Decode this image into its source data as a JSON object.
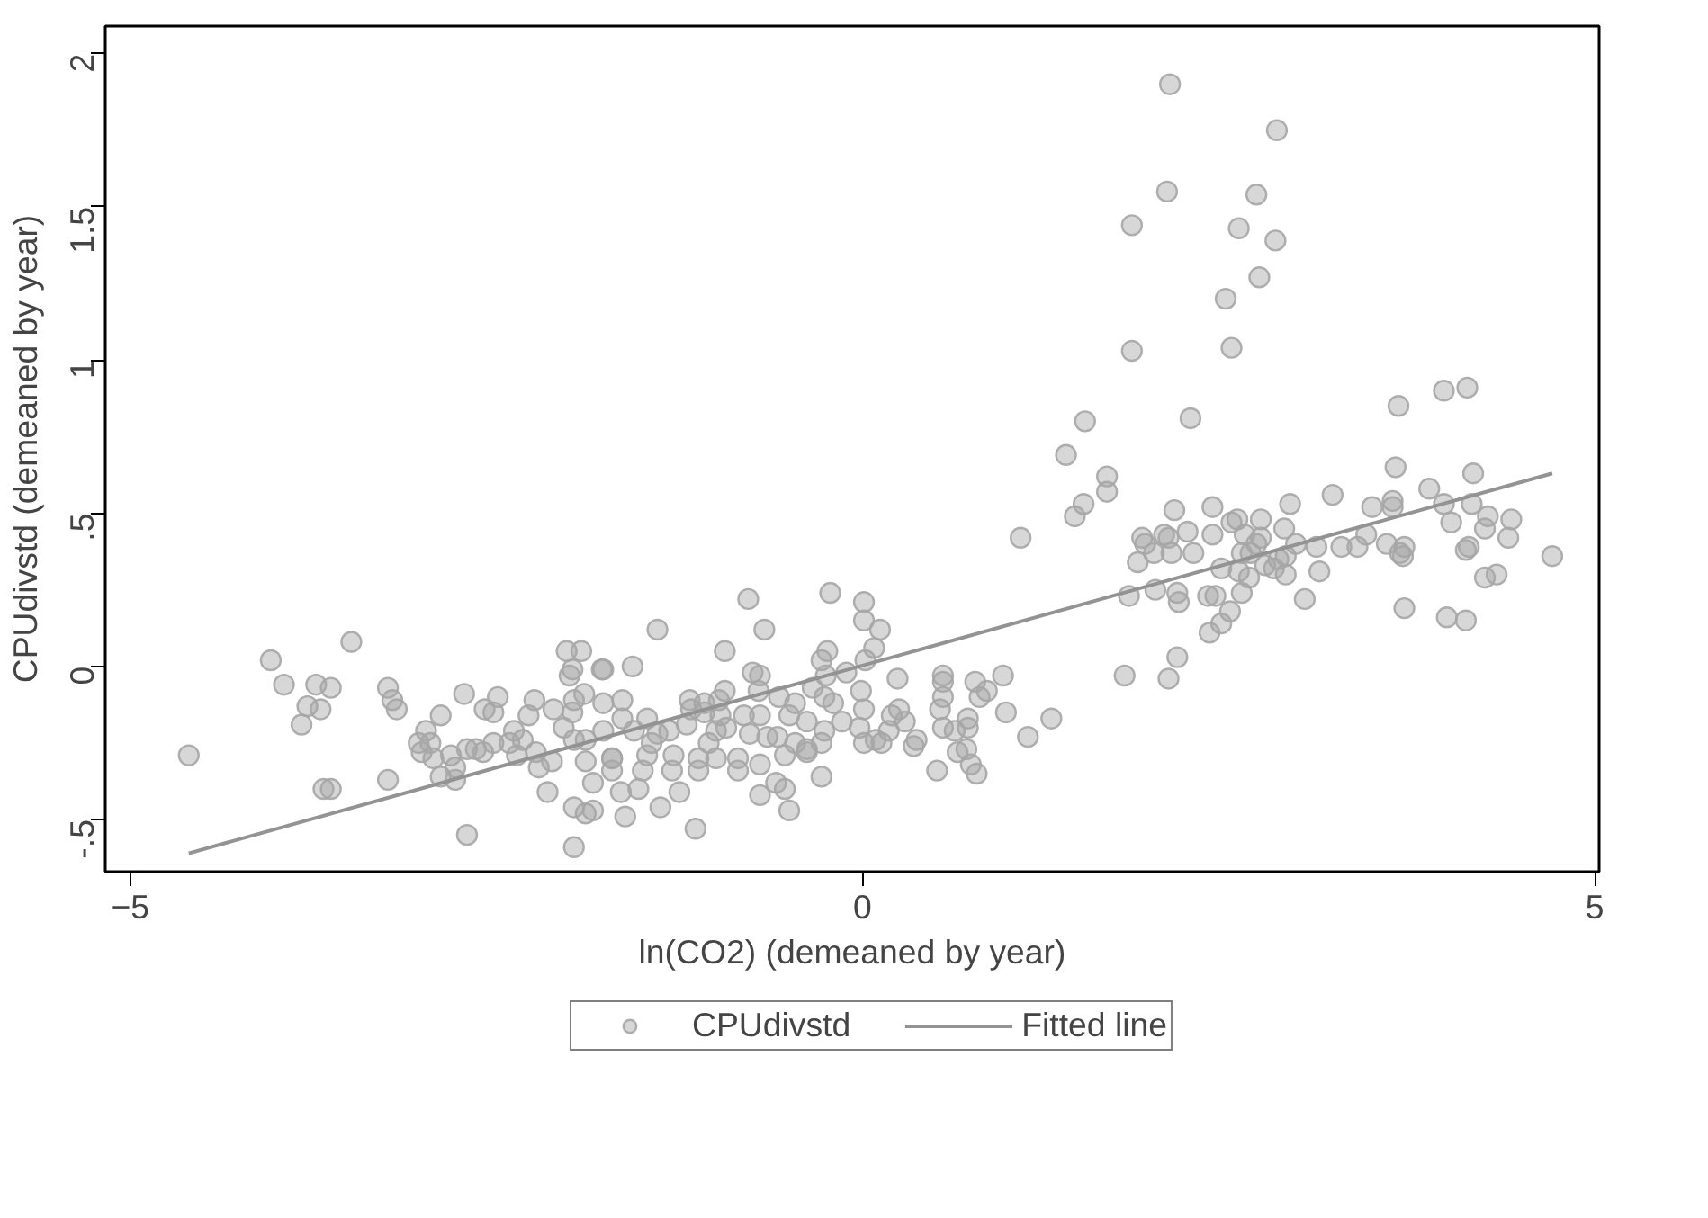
{
  "chart_data": {
    "type": "scatter",
    "xlabel": "ln(CO2) (demeaned by year)",
    "ylabel": "CPUdivstd (demeaned by year)",
    "xlim": [
      -5.17,
      5.03
    ],
    "ylim": [
      -0.67,
      2.09
    ],
    "xticks": [
      -5,
      0,
      5
    ],
    "yticks": [
      {
        "value": -0.5,
        "label": "-.5"
      },
      0,
      {
        "value": 0.5,
        "label": ".5"
      },
      1,
      1.5,
      2
    ],
    "grid": false,
    "legend": "bottom",
    "series": [
      {
        "name": "CPUdivstd",
        "marker": "circle",
        "color": "#a6a6a6",
        "x": [
          -4.6,
          -4.04,
          -3.95,
          -3.49,
          -3.73,
          -3.63,
          -3.79,
          -3.7,
          -3.83,
          -3.68,
          -3.63,
          -3.24,
          -3.21,
          -3.18,
          -3.24,
          -2.88,
          -2.72,
          -2.98,
          -3.03,
          -2.95,
          -3.01,
          -2.93,
          -2.81,
          -2.7,
          -2.64,
          -2.59,
          -2.88,
          -2.78,
          -2.78,
          -2.7,
          -2.58,
          -2.52,
          -2.49,
          -2.52,
          -2.38,
          -2.41,
          -2.32,
          -2.36,
          -2.28,
          -2.24,
          -2.11,
          -2.23,
          -2.21,
          -2.12,
          -2.15,
          -2.02,
          -1.92,
          -1.98,
          -2.0,
          -1.78,
          -1.9,
          -1.97,
          -1.77,
          -2.04,
          -1.98,
          -1.97,
          -1.89,
          -1.77,
          -1.89,
          -1.84,
          -1.97,
          -1.89,
          -1.84,
          -1.97,
          -1.71,
          -1.71,
          -0.78,
          -0.22,
          0.01,
          0.01,
          0.12,
          -1.4,
          -0.67,
          -0.94,
          -1.57,
          -1.77,
          -0.24,
          -0.28,
          0.08,
          0.02,
          -0.75,
          -0.7,
          -0.94,
          -0.71,
          -0.25,
          -0.11,
          -0.01,
          0.24,
          -1.64,
          -1.18,
          -1.08,
          -0.98,
          -0.57,
          -0.46,
          -0.34,
          -0.26,
          -0.2,
          0.01,
          0.2,
          0.25,
          0.29,
          0.55,
          0.55,
          0.77,
          0.85,
          0.8,
          0.96,
          0.55,
          0.53,
          0.72,
          0.63,
          0.55,
          0.72,
          0.65,
          0.71,
          0.74,
          0.78,
          0.51,
          0.98,
          1.13,
          1.29,
          1.79,
          -1.64,
          -1.47,
          -1.4,
          -1.32,
          -1.2,
          -1.17,
          -1.08,
          -0.97,
          -0.93,
          -0.81,
          -0.7,
          -0.5,
          -0.38,
          -0.14,
          -0.02,
          0.09,
          0.18,
          0.37,
          -1.56,
          -1.44,
          -1.05,
          -1.0,
          -0.77,
          -0.65,
          -0.58,
          -0.46,
          -0.38,
          -0.26,
          0.01,
          0.13,
          0.35,
          -1.71,
          -1.47,
          -1.29,
          -1.12,
          -1.0,
          -0.85,
          -0.7,
          -0.53,
          -0.38,
          -0.28,
          -1.5,
          -1.3,
          -1.12,
          -0.85,
          -1.65,
          -1.53,
          -1.38,
          -1.25,
          -1.62,
          -1.14,
          -0.7,
          -0.59,
          -0.53,
          -0.5,
          -0.28,
          2.1,
          2.83,
          2.08,
          2.69,
          1.84,
          2.57,
          2.82,
          2.71,
          2.48,
          1.84,
          2.52,
          1.52,
          2.24,
          1.39,
          3.66,
          3.97,
          4.13,
          1.67,
          1.67,
          1.45,
          1.51,
          1.08,
          3.64,
          4.17,
          3.87,
          3.21,
          2.92,
          2.72,
          2.39,
          2.13,
          3.48,
          3.62,
          3.62,
          3.97,
          4.16,
          4.27,
          4.43,
          4.25,
          4.41,
          4.71,
          4.02,
          4.14,
          4.12,
          4.25,
          4.33,
          3.7,
          3.99,
          4.12,
          3.44,
          3.38,
          3.27,
          3.1,
          3.12,
          3.02,
          3.58,
          3.7,
          3.67,
          3.69,
          2.88,
          2.96,
          2.89,
          2.84,
          2.89,
          2.81,
          2.75,
          2.56,
          2.52,
          2.61,
          2.72,
          2.69,
          2.59,
          2.65,
          2.39,
          2.26,
          2.22,
          2.06,
          2.09,
          1.91,
          1.93,
          1.99,
          2.11,
          1.88,
          2.45,
          2.57,
          2.64,
          1.82,
          2.0,
          2.15,
          2.16,
          2.36,
          2.41,
          2.59,
          2.51,
          2.45,
          2.37,
          2.15,
          2.09
        ],
        "values": [
          -0.29,
          0.02,
          -0.06,
          0.08,
          -0.06,
          -0.07,
          -0.13,
          -0.14,
          -0.19,
          -0.4,
          -0.4,
          -0.07,
          -0.11,
          -0.14,
          -0.37,
          -0.16,
          -0.09,
          -0.21,
          -0.25,
          -0.25,
          -0.28,
          -0.3,
          -0.29,
          -0.27,
          -0.27,
          -0.28,
          -0.36,
          -0.33,
          -0.37,
          -0.55,
          -0.14,
          -0.15,
          -0.1,
          -0.25,
          -0.21,
          -0.25,
          -0.24,
          -0.29,
          -0.16,
          -0.11,
          -0.14,
          -0.28,
          -0.33,
          -0.31,
          -0.41,
          0.05,
          0.05,
          -0.01,
          -0.03,
          -0.01,
          -0.09,
          -0.11,
          -0.12,
          -0.2,
          -0.15,
          -0.24,
          -0.24,
          -0.21,
          -0.31,
          -0.38,
          -0.46,
          -0.48,
          -0.47,
          -0.59,
          -0.3,
          -0.34,
          0.22,
          0.24,
          0.21,
          0.15,
          0.12,
          0.12,
          0.12,
          0.05,
          0.0,
          -0.01,
          0.05,
          0.02,
          0.06,
          0.02,
          -0.02,
          -0.03,
          -0.08,
          -0.08,
          -0.03,
          -0.02,
          -0.08,
          -0.04,
          -0.11,
          -0.11,
          -0.12,
          -0.11,
          -0.1,
          -0.12,
          -0.07,
          -0.1,
          -0.12,
          -0.14,
          -0.16,
          -0.14,
          -0.18,
          -0.03,
          -0.05,
          -0.05,
          -0.08,
          -0.1,
          -0.03,
          -0.1,
          -0.14,
          -0.17,
          -0.21,
          -0.2,
          -0.2,
          -0.28,
          -0.27,
          -0.32,
          -0.35,
          -0.34,
          -0.15,
          -0.23,
          -0.17,
          -0.03,
          -0.17,
          -0.17,
          -0.22,
          -0.21,
          -0.19,
          -0.14,
          -0.15,
          -0.16,
          -0.2,
          -0.16,
          -0.16,
          -0.16,
          -0.18,
          -0.18,
          -0.2,
          -0.24,
          -0.21,
          -0.24,
          -0.21,
          -0.25,
          -0.25,
          -0.21,
          -0.22,
          -0.23,
          -0.23,
          -0.25,
          -0.27,
          -0.21,
          -0.25,
          -0.25,
          -0.26,
          -0.3,
          -0.29,
          -0.29,
          -0.3,
          -0.3,
          -0.3,
          -0.32,
          -0.29,
          -0.28,
          -0.25,
          -0.34,
          -0.34,
          -0.34,
          -0.34,
          -0.41,
          -0.4,
          -0.46,
          -0.41,
          -0.49,
          -0.53,
          -0.42,
          -0.38,
          -0.4,
          -0.47,
          -0.36,
          1.9,
          1.75,
          1.55,
          1.54,
          1.44,
          1.43,
          1.39,
          1.27,
          1.2,
          1.03,
          1.04,
          0.8,
          0.81,
          0.69,
          0.85,
          0.9,
          0.91,
          0.62,
          0.57,
          0.49,
          0.53,
          0.42,
          0.65,
          0.63,
          0.58,
          0.56,
          0.53,
          0.48,
          0.52,
          0.51,
          0.52,
          0.54,
          0.52,
          0.53,
          0.53,
          0.49,
          0.48,
          0.45,
          0.42,
          0.36,
          0.47,
          0.39,
          0.38,
          0.29,
          0.3,
          0.19,
          0.16,
          0.15,
          0.43,
          0.39,
          0.39,
          0.39,
          0.31,
          0.22,
          0.4,
          0.39,
          0.37,
          0.36,
          0.45,
          0.4,
          0.36,
          0.35,
          0.3,
          0.32,
          0.33,
          0.48,
          0.47,
          0.43,
          0.42,
          0.4,
          0.37,
          0.37,
          0.43,
          0.37,
          0.44,
          0.43,
          0.42,
          0.42,
          0.4,
          0.37,
          0.37,
          0.34,
          0.32,
          0.31,
          0.29,
          0.23,
          0.25,
          0.24,
          0.21,
          0.23,
          0.23,
          0.24,
          0.18,
          0.14,
          0.11,
          0.03,
          -0.04
        ]
      },
      {
        "name": "Fitted line",
        "type": "line",
        "color": "#939393",
        "line_style": "solid",
        "x": [
          -4.6,
          4.71
        ],
        "values": [
          -0.61,
          0.63
        ]
      }
    ]
  }
}
